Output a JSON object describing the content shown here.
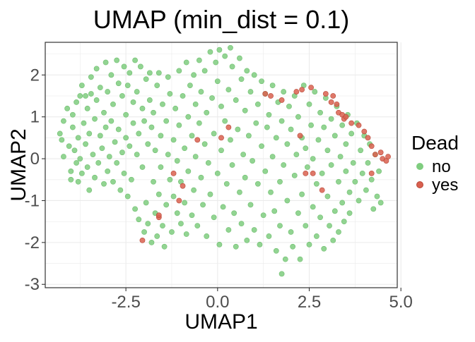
{
  "chart_data": {
    "type": "scatter",
    "title": "UMAP (min_dist = 0.1)",
    "xlabel": "UMAP1",
    "ylabel": "UMAP2",
    "xlim": [
      -4.7,
      4.9
    ],
    "ylim": [
      -3.08,
      2.78
    ],
    "xticks": [
      -2.5,
      0.0,
      2.5,
      5.0
    ],
    "xtick_labels": [
      "-2.5",
      "0.0",
      "2.5",
      "5.0"
    ],
    "yticks": [
      -3,
      -2,
      -1,
      0,
      1,
      2
    ],
    "ytick_labels": [
      "-3",
      "-2",
      "-1",
      "0",
      "1",
      "2"
    ],
    "grid": true,
    "legend": {
      "title": "Dead",
      "position": "right",
      "entries": [
        {
          "label": "no",
          "color": "#7fcd7f"
        },
        {
          "label": "yes",
          "color": "#d9604f"
        }
      ]
    },
    "colors": {
      "no": "#7fcd7f",
      "yes": "#d9604f",
      "grid": "#ebebeb",
      "panel_border": "#333333"
    },
    "series": [
      {
        "name": "no",
        "points": [
          [
            -4.3,
            0.6
          ],
          [
            -4.25,
            0.45
          ],
          [
            -4.2,
            0.9
          ],
          [
            -4.2,
            0.05
          ],
          [
            -4.1,
            1.2
          ],
          [
            -4.05,
            0.3
          ],
          [
            -4.0,
            -0.3
          ],
          [
            -4.0,
            -0.5
          ],
          [
            -3.95,
            1.05
          ],
          [
            -3.95,
            0.75
          ],
          [
            -3.9,
            0.2
          ],
          [
            -3.85,
            -0.1
          ],
          [
            -3.85,
            1.35
          ],
          [
            -3.8,
            -0.55
          ],
          [
            -3.8,
            0.5
          ],
          [
            -3.75,
            1.5
          ],
          [
            -3.75,
            0.0
          ],
          [
            -3.7,
            1.75
          ],
          [
            -3.7,
            -0.35
          ],
          [
            -3.65,
            0.85
          ],
          [
            -3.6,
            1.5
          ],
          [
            -3.6,
            0.35
          ],
          [
            -3.55,
            -0.2
          ],
          [
            -3.55,
            1.2
          ],
          [
            -3.5,
            -0.75
          ],
          [
            -3.5,
            0.6
          ],
          [
            -3.45,
            1.95
          ],
          [
            -3.45,
            1.55
          ],
          [
            -3.4,
            0.1
          ],
          [
            -3.35,
            -0.45
          ],
          [
            -3.35,
            0.95
          ],
          [
            -3.3,
            2.15
          ],
          [
            -3.3,
            1.4
          ],
          [
            -3.25,
            -0.1
          ],
          [
            -3.2,
            0.55
          ],
          [
            -3.2,
            1.7
          ],
          [
            -3.15,
            0.25
          ],
          [
            -3.1,
            -0.6
          ],
          [
            -3.1,
            1.1
          ],
          [
            -3.05,
            2.3
          ],
          [
            -3.05,
            0.75
          ],
          [
            -3.0,
            -0.3
          ],
          [
            -3.0,
            1.6
          ],
          [
            -2.95,
            0.05
          ],
          [
            -2.9,
            2.0
          ],
          [
            -2.9,
            0.9
          ],
          [
            -2.85,
            -0.55
          ],
          [
            -2.85,
            1.3
          ],
          [
            -2.8,
            0.4
          ],
          [
            -2.75,
            2.35
          ],
          [
            -2.75,
            -0.1
          ],
          [
            -2.7,
            1.8
          ],
          [
            -2.7,
            0.7
          ],
          [
            -2.65,
            -0.75
          ],
          [
            -2.6,
            1.5
          ],
          [
            -2.6,
            0.15
          ],
          [
            -2.55,
            2.2
          ],
          [
            -2.55,
            -0.35
          ],
          [
            -2.5,
            1.05
          ],
          [
            -2.5,
            0.5
          ],
          [
            -2.45,
            1.75
          ],
          [
            -2.45,
            -0.9
          ],
          [
            -2.4,
            0.3
          ],
          [
            -2.4,
            2.05
          ],
          [
            -2.35,
            -0.5
          ],
          [
            -2.3,
            1.35
          ],
          [
            -2.3,
            0.85
          ],
          [
            -2.25,
            2.35
          ],
          [
            -2.25,
            -1.2
          ],
          [
            -2.2,
            0.1
          ],
          [
            -2.2,
            1.6
          ],
          [
            -2.15,
            -1.45
          ],
          [
            -2.15,
            0.6
          ],
          [
            -2.1,
            2.2
          ],
          [
            -2.05,
            -0.2
          ],
          [
            -2.05,
            1.2
          ],
          [
            -2.0,
            -1.75
          ],
          [
            -2.0,
            0.9
          ],
          [
            -1.95,
            1.9
          ],
          [
            -1.95,
            -1.05
          ],
          [
            -1.9,
            0.35
          ],
          [
            -1.9,
            -1.55
          ],
          [
            -1.85,
            2.05
          ],
          [
            -1.85,
            1.4
          ],
          [
            -1.8,
            0.75
          ],
          [
            -1.8,
            -2.0
          ],
          [
            -1.75,
            -0.55
          ],
          [
            -1.75,
            1.1
          ],
          [
            -1.7,
            -1.3
          ],
          [
            -1.7,
            0.2
          ],
          [
            -1.65,
            1.75
          ],
          [
            -1.65,
            -1.85
          ],
          [
            -1.6,
            -0.85
          ],
          [
            -1.6,
            2.05
          ],
          [
            -1.55,
            0.55
          ],
          [
            -1.55,
            -0.2
          ],
          [
            -1.5,
            1.3
          ],
          [
            -1.5,
            -1.6
          ],
          [
            -1.45,
            -2.1
          ],
          [
            -1.4,
            0.9
          ],
          [
            -1.4,
            -1.1
          ],
          [
            -1.35,
            1.95
          ],
          [
            -1.35,
            0.1
          ],
          [
            -1.3,
            -0.5
          ],
          [
            -1.3,
            1.55
          ],
          [
            -1.25,
            -1.75
          ],
          [
            -1.2,
            0.45
          ],
          [
            -1.2,
            -0.9
          ],
          [
            -1.15,
            1.2
          ],
          [
            -1.1,
            -1.3
          ],
          [
            -1.1,
            -0.05
          ],
          [
            -1.05,
            2.1
          ],
          [
            -1.05,
            0.8
          ],
          [
            -1.0,
            -1.55
          ],
          [
            -1.0,
            -0.55
          ],
          [
            -0.95,
            1.5
          ],
          [
            -0.9,
            0.25
          ],
          [
            -0.9,
            -1.05
          ],
          [
            -0.85,
            2.3
          ],
          [
            -0.85,
            -1.8
          ],
          [
            -0.8,
            1.0
          ],
          [
            -0.8,
            -0.3
          ],
          [
            -0.75,
            1.75
          ],
          [
            -0.7,
            0.55
          ],
          [
            -0.7,
            -1.35
          ],
          [
            -0.65,
            2.0
          ],
          [
            -0.65,
            -0.75
          ],
          [
            -0.6,
            0.05
          ],
          [
            -0.6,
            1.3
          ],
          [
            -0.55,
            -1.6
          ],
          [
            -0.5,
            2.35
          ],
          [
            -0.5,
            0.85
          ],
          [
            -0.45,
            -0.45
          ],
          [
            -0.45,
            1.6
          ],
          [
            -0.4,
            -1.1
          ],
          [
            -0.35,
            0.35
          ],
          [
            -0.35,
            2.1
          ],
          [
            -0.3,
            -1.85
          ],
          [
            -0.3,
            1.1
          ],
          [
            -0.25,
            -0.1
          ],
          [
            -0.2,
            2.55
          ],
          [
            -0.2,
            -0.85
          ],
          [
            -0.15,
            1.45
          ],
          [
            -0.1,
            0.6
          ],
          [
            -0.1,
            -1.4
          ],
          [
            -0.05,
            2.3
          ],
          [
            0.0,
            -0.35
          ],
          [
            0.0,
            1.85
          ],
          [
            0.05,
            2.6
          ],
          [
            0.05,
            -2.05
          ],
          [
            0.1,
            0.2
          ],
          [
            0.1,
            1.25
          ],
          [
            0.15,
            -1.15
          ],
          [
            0.2,
            2.45
          ],
          [
            0.2,
            0.9
          ],
          [
            0.25,
            -0.6
          ],
          [
            0.3,
            1.65
          ],
          [
            0.3,
            -1.7
          ],
          [
            0.35,
            2.65
          ],
          [
            0.35,
            0.45
          ],
          [
            0.4,
            -0.15
          ],
          [
            0.4,
            2.2
          ],
          [
            0.45,
            -1.3
          ],
          [
            0.5,
            1.4
          ],
          [
            0.5,
            -2.1
          ],
          [
            0.55,
            0.7
          ],
          [
            0.6,
            -0.8
          ],
          [
            0.6,
            2.4
          ],
          [
            0.65,
            1.9
          ],
          [
            0.65,
            -1.55
          ],
          [
            0.7,
            0.1
          ],
          [
            0.75,
            1.15
          ],
          [
            0.75,
            -0.45
          ],
          [
            0.8,
            2.1
          ],
          [
            0.8,
            -1.95
          ],
          [
            0.85,
            0.55
          ],
          [
            0.9,
            -1.1
          ],
          [
            0.9,
            1.6
          ],
          [
            0.95,
            -0.05
          ],
          [
            1.0,
            2.0
          ],
          [
            1.0,
            -1.7
          ],
          [
            1.05,
            0.85
          ],
          [
            1.1,
            -0.6
          ],
          [
            1.1,
            1.3
          ],
          [
            1.15,
            -2.05
          ],
          [
            1.2,
            1.85
          ],
          [
            1.2,
            0.3
          ],
          [
            1.25,
            -1.35
          ],
          [
            1.3,
            1.55
          ],
          [
            1.3,
            -0.3
          ],
          [
            1.35,
            0.75
          ],
          [
            1.4,
            -1.85
          ],
          [
            1.4,
            1.05
          ],
          [
            1.45,
            -0.8
          ],
          [
            1.5,
            1.75
          ],
          [
            1.5,
            0.05
          ],
          [
            1.55,
            -1.25
          ],
          [
            1.6,
            0.5
          ],
          [
            1.6,
            -2.2
          ],
          [
            1.65,
            1.35
          ],
          [
            1.7,
            -0.55
          ],
          [
            1.7,
            -1.6
          ],
          [
            1.75,
            0.9
          ],
          [
            1.75,
            -2.75
          ],
          [
            1.8,
            1.6
          ],
          [
            1.8,
            -0.15
          ],
          [
            1.85,
            -2.4
          ],
          [
            1.9,
            0.35
          ],
          [
            1.9,
            -1.0
          ],
          [
            1.95,
            1.25
          ],
          [
            2.0,
            -1.75
          ],
          [
            2.0,
            0.7
          ],
          [
            2.05,
            -2.1
          ],
          [
            2.1,
            -0.4
          ],
          [
            2.1,
            1.5
          ],
          [
            2.15,
            0.1
          ],
          [
            2.2,
            -1.3
          ],
          [
            2.2,
            1.0
          ],
          [
            2.25,
            -2.4
          ],
          [
            2.3,
            0.5
          ],
          [
            2.3,
            -0.85
          ],
          [
            2.35,
            1.75
          ],
          [
            2.4,
            -1.6
          ],
          [
            2.4,
            0.25
          ],
          [
            2.45,
            -0.2
          ],
          [
            2.5,
            1.3
          ],
          [
            2.5,
            -2.05
          ],
          [
            2.55,
            0.8
          ],
          [
            2.6,
            -1.15
          ],
          [
            2.6,
            0.0
          ],
          [
            2.65,
            1.6
          ],
          [
            2.7,
            -0.6
          ],
          [
            2.7,
            -1.85
          ],
          [
            2.75,
            0.45
          ],
          [
            2.8,
            1.1
          ],
          [
            2.8,
            -1.4
          ],
          [
            2.85,
            -0.35
          ],
          [
            2.9,
            0.75
          ],
          [
            2.9,
            -2.15
          ],
          [
            2.95,
            1.45
          ],
          [
            3.0,
            0.2
          ],
          [
            3.0,
            -0.9
          ],
          [
            3.05,
            -1.6
          ],
          [
            3.1,
            0.95
          ],
          [
            3.1,
            -0.15
          ],
          [
            3.15,
            -1.95
          ],
          [
            3.2,
            0.55
          ],
          [
            3.2,
            -1.25
          ],
          [
            3.25,
            1.25
          ],
          [
            3.3,
            -0.55
          ],
          [
            3.3,
            -1.75
          ],
          [
            3.35,
            0.05
          ],
          [
            3.4,
            0.8
          ],
          [
            3.4,
            -1.05
          ],
          [
            3.45,
            -1.5
          ],
          [
            3.5,
            0.35
          ],
          [
            3.5,
            -0.3
          ],
          [
            3.55,
            1.05
          ],
          [
            3.6,
            -0.8
          ],
          [
            3.6,
            -1.3
          ],
          [
            3.65,
            0.6
          ],
          [
            3.7,
            -0.1
          ],
          [
            3.75,
            -0.55
          ],
          [
            3.8,
            0.85
          ],
          [
            3.85,
            -1.0
          ],
          [
            3.9,
            0.2
          ],
          [
            3.95,
            -0.35
          ],
          [
            4.0,
            0.55
          ],
          [
            4.05,
            -0.75
          ],
          [
            4.1,
            -0.1
          ],
          [
            4.15,
            0.35
          ],
          [
            4.2,
            -0.5
          ],
          [
            4.25,
            -1.2
          ],
          [
            4.3,
            0.1
          ],
          [
            4.35,
            -0.9
          ],
          [
            4.4,
            -0.3
          ],
          [
            4.45,
            -1.05
          ]
        ]
      },
      {
        "name": "yes",
        "points": [
          [
            -2.05,
            -1.95
          ],
          [
            -1.6,
            -1.4
          ],
          [
            -1.6,
            -1.35
          ],
          [
            -1.2,
            -0.35
          ],
          [
            -1.05,
            -1.0
          ],
          [
            -0.95,
            -0.65
          ],
          [
            -0.55,
            0.45
          ],
          [
            0.1,
            0.5
          ],
          [
            0.3,
            0.75
          ],
          [
            1.3,
            1.55
          ],
          [
            1.45,
            1.5
          ],
          [
            1.75,
            1.4
          ],
          [
            2.15,
            1.6
          ],
          [
            2.25,
            0.55
          ],
          [
            2.3,
            1.65
          ],
          [
            2.55,
            1.7
          ],
          [
            2.4,
            -0.35
          ],
          [
            2.6,
            -0.35
          ],
          [
            2.85,
            -0.75
          ],
          [
            2.95,
            1.55
          ],
          [
            3.1,
            1.35
          ],
          [
            3.15,
            1.5
          ],
          [
            3.25,
            1.3
          ],
          [
            3.3,
            1.1
          ],
          [
            3.4,
            1.05
          ],
          [
            3.45,
            0.95
          ],
          [
            3.5,
            1.0
          ],
          [
            3.65,
            0.85
          ],
          [
            3.85,
            0.8
          ],
          [
            4.0,
            0.65
          ],
          [
            4.1,
            0.5
          ],
          [
            4.2,
            0.3
          ],
          [
            4.3,
            0.1
          ],
          [
            4.45,
            0.15
          ],
          [
            4.5,
            0.0
          ],
          [
            4.6,
            -0.05
          ],
          [
            4.65,
            0.05
          ],
          [
            4.2,
            -0.35
          ]
        ]
      }
    ]
  }
}
